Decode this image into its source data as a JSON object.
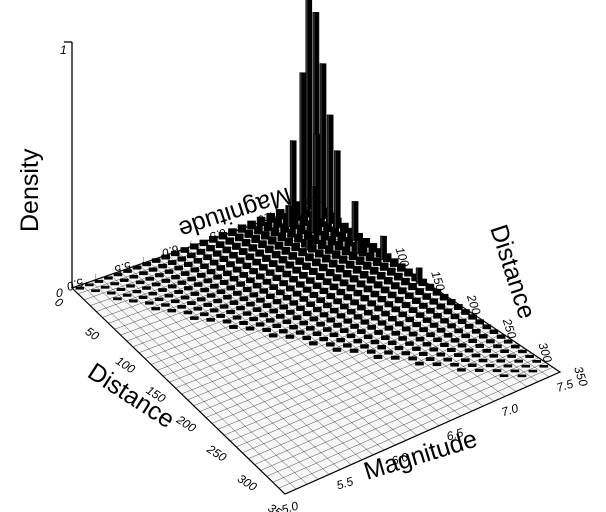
{
  "chart_data": {
    "type": "3d-bar-histogram",
    "zlabel": "Density",
    "xlabel": "Magnitude",
    "ylabel": "Distance",
    "back_xlabel": "Magnitude",
    "back_ylabel": "Distance",
    "z_ticks": [
      "1",
      "0"
    ],
    "magnitude_ticks": [
      "5.0",
      "5.5",
      "6.0",
      "6.5",
      "7.0",
      "7.5"
    ],
    "back_magnitude_ticks": [
      "5.0",
      "5.5",
      "6.0",
      "6.5",
      "7.0",
      "7.5"
    ],
    "distance_ticks": [
      "0",
      "50",
      "100",
      "150",
      "200",
      "250",
      "300",
      "350"
    ],
    "back_distance_ticks": [
      "100",
      "150",
      "200",
      "250",
      "300",
      "350"
    ],
    "xlim": [
      5.0,
      7.5
    ],
    "ylim": [
      0,
      350
    ],
    "zlim": [
      0,
      1
    ],
    "grid": true,
    "description_of_shape": "density concentrated at magnitude ~7.5 and distance ~0-50, decaying with distance",
    "series": [
      {
        "magnitude": 7.45,
        "distance": 5,
        "density": 1.0
      },
      {
        "magnitude": 7.45,
        "distance": 15,
        "density": 0.78
      },
      {
        "magnitude": 7.45,
        "distance": 25,
        "density": 0.6
      },
      {
        "magnitude": 7.45,
        "distance": 35,
        "density": 0.42
      },
      {
        "magnitude": 7.45,
        "distance": 45,
        "density": 0.3
      },
      {
        "magnitude": 7.35,
        "distance": 10,
        "density": 0.55
      },
      {
        "magnitude": 7.35,
        "distance": 30,
        "density": 0.35
      },
      {
        "magnitude": 7.25,
        "distance": 10,
        "density": 0.3
      },
      {
        "magnitude": 7.25,
        "distance": 40,
        "density": 0.18
      },
      {
        "magnitude": 7.45,
        "distance": 70,
        "density": 0.15
      },
      {
        "magnitude": 7.45,
        "distance": 110,
        "density": 0.09
      },
      {
        "magnitude": 7.45,
        "distance": 160,
        "density": 0.06
      },
      {
        "magnitude": 7.15,
        "distance": 20,
        "density": 0.08
      },
      {
        "magnitude": 7.35,
        "distance": 90,
        "density": 0.05
      },
      {
        "magnitude": 7.05,
        "distance": 60,
        "density": 0.04
      }
    ]
  }
}
